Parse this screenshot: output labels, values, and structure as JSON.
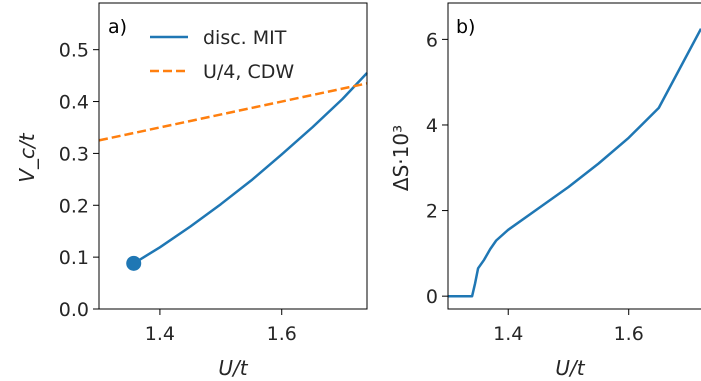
{
  "colors": {
    "mit": "#1f77b4",
    "cdw": "#ff7f0e",
    "axes": "#000000"
  },
  "chart_data": [
    {
      "type": "line",
      "panel_label": "a)",
      "xlabel": "U/t",
      "ylabel": "V_c/t",
      "xlim": [
        1.3,
        1.74
      ],
      "ylim": [
        0.0,
        0.59
      ],
      "xticks": [
        1.4,
        1.6
      ],
      "xtick_labels": [
        "1.4",
        "1.6"
      ],
      "yticks": [
        0.0,
        0.1,
        0.2,
        0.3,
        0.4,
        0.5
      ],
      "ytick_labels": [
        "0.0",
        "0.1",
        "0.2",
        "0.3",
        "0.4",
        "0.5"
      ],
      "legend_placement": "top-right",
      "series": [
        {
          "name": "disc. MIT",
          "style": "solid",
          "x": [
            1.357,
            1.4,
            1.45,
            1.5,
            1.55,
            1.6,
            1.65,
            1.7,
            1.74
          ],
          "y": [
            0.088,
            0.119,
            0.159,
            0.202,
            0.248,
            0.298,
            0.35,
            0.405,
            0.455
          ]
        },
        {
          "name": "U/4, CDW",
          "style": "dashed",
          "x": [
            1.3,
            1.74
          ],
          "y": [
            0.325,
            0.435
          ]
        }
      ],
      "markers": [
        {
          "x": 1.357,
          "y": 0.088
        }
      ]
    },
    {
      "type": "line",
      "panel_label": "b)",
      "xlabel": "U/t",
      "ylabel": "ΔS·10³",
      "xlim": [
        1.3,
        1.72
      ],
      "ylim": [
        -0.3,
        6.85
      ],
      "xticks": [
        1.4,
        1.6
      ],
      "xtick_labels": [
        "1.4",
        "1.6"
      ],
      "yticks": [
        0,
        2,
        4,
        6
      ],
      "ytick_labels": [
        "0",
        "2",
        "4",
        "6"
      ],
      "series": [
        {
          "x": [
            1.3,
            1.34,
            1.345,
            1.35,
            1.36,
            1.37,
            1.38,
            1.4,
            1.45,
            1.5,
            1.55,
            1.6,
            1.65,
            1.72
          ],
          "y": [
            0.0,
            0.0,
            0.3,
            0.65,
            0.85,
            1.1,
            1.3,
            1.55,
            2.05,
            2.55,
            3.1,
            3.7,
            4.4,
            6.25
          ]
        }
      ]
    }
  ]
}
